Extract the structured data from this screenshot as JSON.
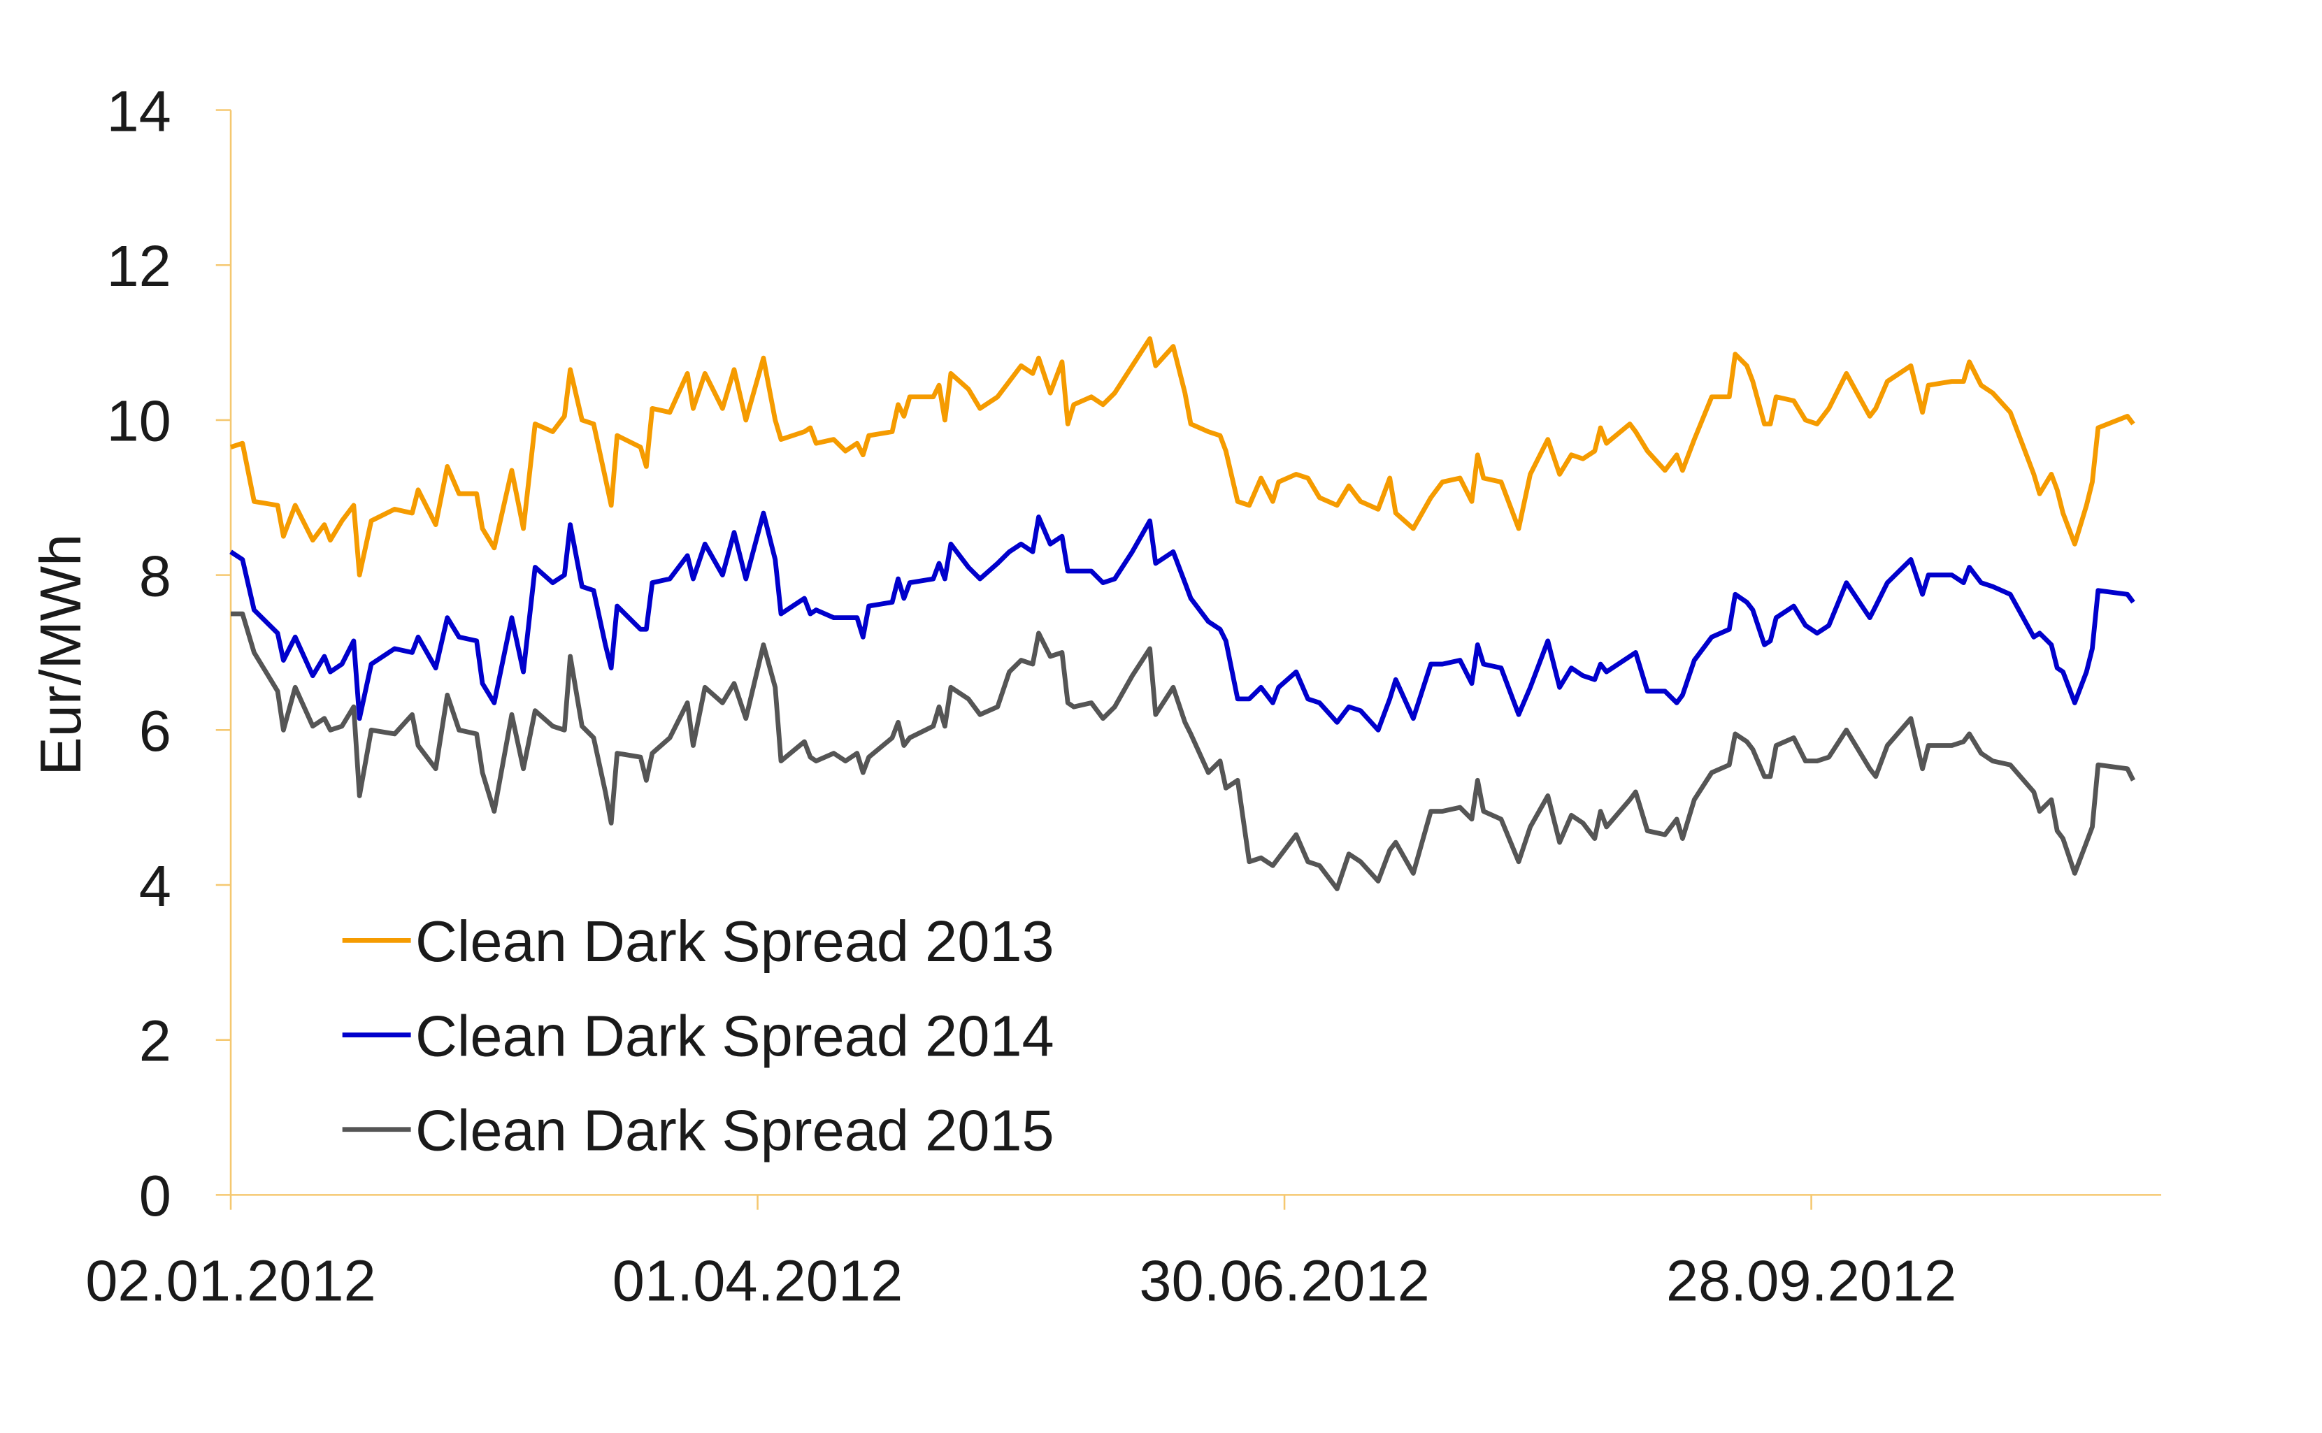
{
  "chart_data": {
    "type": "line",
    "title": "",
    "xlabel": "",
    "ylabel": "Eur/MWh",
    "ylim": [
      0,
      14
    ],
    "yticks": [
      "0",
      "2",
      "4",
      "6",
      "8",
      "10",
      "12",
      "14"
    ],
    "x_start_date": "02.01.2012",
    "xlim_days": [
      0,
      330
    ],
    "xticks": [
      {
        "day": 0,
        "label": "02.01.2012"
      },
      {
        "day": 90,
        "label": "01.04.2012"
      },
      {
        "day": 180,
        "label": "30.06.2012"
      },
      {
        "day": 270,
        "label": "28.09.2012"
      }
    ],
    "grid": false,
    "legend_position": "bottom-left",
    "x_days": [
      0,
      2,
      4,
      8,
      9,
      11,
      14,
      16,
      17,
      19,
      21,
      22,
      24,
      28,
      31,
      32,
      35,
      37,
      39,
      42,
      43,
      45,
      48,
      50,
      52,
      55,
      57,
      58,
      60,
      62,
      64,
      65,
      66,
      70,
      71,
      72,
      75,
      78,
      79,
      81,
      84,
      86,
      88,
      91,
      93,
      94,
      98,
      99,
      100,
      103,
      105,
      107,
      108,
      109,
      113,
      114,
      115,
      116,
      120,
      121,
      122,
      123,
      126,
      128,
      131,
      133,
      135,
      137,
      138,
      140,
      142,
      143,
      144,
      147,
      149,
      151,
      154,
      157,
      158,
      161,
      163,
      164,
      167,
      169,
      170,
      172,
      174,
      176,
      178,
      179,
      182,
      184,
      186,
      189,
      191,
      193,
      196,
      198,
      199,
      202,
      205,
      207,
      210,
      212,
      213,
      214,
      217,
      220,
      222,
      225,
      227,
      229,
      231,
      233,
      234,
      235,
      239,
      240,
      242,
      245,
      247,
      248,
      250,
      253,
      256,
      257,
      259,
      260,
      262,
      263,
      264,
      267,
      269,
      271,
      273,
      276,
      280,
      281,
      283,
      287,
      289,
      290,
      294,
      296,
      297,
      299,
      301,
      304,
      308,
      309,
      311,
      312,
      313,
      315,
      317,
      318,
      319,
      324,
      325
    ],
    "series": [
      {
        "name": "Clean Dark Spread 2013",
        "color": "#F59B00",
        "values": [
          9.65,
          9.7,
          8.95,
          8.9,
          8.5,
          8.9,
          8.45,
          8.65,
          8.45,
          8.7,
          8.9,
          8.0,
          8.7,
          8.85,
          8.8,
          9.1,
          8.65,
          9.4,
          9.05,
          9.05,
          8.6,
          8.35,
          9.35,
          8.6,
          9.95,
          9.85,
          10.05,
          10.65,
          10.0,
          9.95,
          9.25,
          8.9,
          9.8,
          9.65,
          9.4,
          10.15,
          10.1,
          10.6,
          10.15,
          10.6,
          10.15,
          10.65,
          10.0,
          10.8,
          10.0,
          9.75,
          9.85,
          9.9,
          9.7,
          9.75,
          9.6,
          9.7,
          9.55,
          9.8,
          9.85,
          10.2,
          10.05,
          10.3,
          10.3,
          10.45,
          10.0,
          10.6,
          10.4,
          10.15,
          10.3,
          10.5,
          10.7,
          10.6,
          10.8,
          10.35,
          10.75,
          9.95,
          10.2,
          10.3,
          10.2,
          10.35,
          10.7,
          11.05,
          10.7,
          10.95,
          10.35,
          9.95,
          9.85,
          9.8,
          9.6,
          8.95,
          8.9,
          9.25,
          8.95,
          9.2,
          9.3,
          9.25,
          9.0,
          8.9,
          9.15,
          8.95,
          8.85,
          9.25,
          8.8,
          8.6,
          9.0,
          9.2,
          9.25,
          8.95,
          9.55,
          9.25,
          9.2,
          8.6,
          9.3,
          9.75,
          9.3,
          9.55,
          9.5,
          9.6,
          9.9,
          9.7,
          9.95,
          9.85,
          9.6,
          9.35,
          9.55,
          9.35,
          9.75,
          10.3,
          10.3,
          10.85,
          10.7,
          10.5,
          9.95,
          9.95,
          10.3,
          10.25,
          10.0,
          9.95,
          10.15,
          10.6,
          10.05,
          10.15,
          10.5,
          10.7,
          10.1,
          10.45,
          10.5,
          10.5,
          10.75,
          10.45,
          10.35,
          10.1,
          9.3,
          9.05,
          9.3,
          9.1,
          8.8,
          8.4,
          8.9,
          9.2,
          9.9,
          10.05,
          9.95
        ]
      },
      {
        "name": "Clean Dark Spread 2014",
        "color": "#0000CC",
        "values": [
          8.3,
          8.2,
          7.55,
          7.25,
          6.9,
          7.2,
          6.7,
          6.95,
          6.75,
          6.85,
          7.15,
          6.15,
          6.85,
          7.05,
          7.0,
          7.2,
          6.8,
          7.45,
          7.2,
          7.15,
          6.6,
          6.35,
          7.45,
          6.75,
          8.1,
          7.9,
          8.0,
          8.65,
          7.85,
          7.8,
          7.1,
          6.8,
          7.6,
          7.3,
          7.3,
          7.9,
          7.95,
          8.25,
          7.95,
          8.4,
          8.0,
          8.55,
          7.95,
          8.8,
          8.2,
          7.5,
          7.7,
          7.5,
          7.55,
          7.45,
          7.45,
          7.45,
          7.2,
          7.6,
          7.65,
          7.95,
          7.7,
          7.9,
          7.95,
          8.15,
          7.95,
          8.4,
          8.1,
          7.95,
          8.15,
          8.3,
          8.4,
          8.3,
          8.75,
          8.4,
          8.5,
          8.05,
          8.05,
          8.05,
          7.9,
          7.95,
          8.3,
          8.7,
          8.15,
          8.3,
          7.9,
          7.7,
          7.4,
          7.3,
          7.15,
          6.4,
          6.4,
          6.55,
          6.35,
          6.55,
          6.75,
          6.4,
          6.35,
          6.1,
          6.3,
          6.25,
          6.0,
          6.4,
          6.65,
          6.15,
          6.85,
          6.85,
          6.9,
          6.6,
          7.1,
          6.85,
          6.8,
          6.2,
          6.55,
          7.15,
          6.55,
          6.8,
          6.7,
          6.65,
          6.85,
          6.75,
          6.95,
          7.0,
          6.5,
          6.5,
          6.35,
          6.45,
          6.9,
          7.2,
          7.3,
          7.75,
          7.65,
          7.55,
          7.1,
          7.15,
          7.45,
          7.6,
          7.35,
          7.25,
          7.35,
          7.9,
          7.45,
          7.6,
          7.9,
          8.2,
          7.75,
          8.0,
          8.0,
          7.9,
          8.1,
          7.9,
          7.85,
          7.75,
          7.2,
          7.25,
          7.1,
          6.8,
          6.75,
          6.35,
          6.75,
          7.05,
          7.8,
          7.75,
          7.65
        ]
      },
      {
        "name": "Clean Dark Spread 2015",
        "color": "#555555",
        "values": [
          7.5,
          7.5,
          7.0,
          6.5,
          6.0,
          6.55,
          6.05,
          6.15,
          6.0,
          6.05,
          6.3,
          5.15,
          6.0,
          5.95,
          6.2,
          5.8,
          5.5,
          6.45,
          6.0,
          5.95,
          5.45,
          4.95,
          6.2,
          5.5,
          6.25,
          6.05,
          6.0,
          6.95,
          6.05,
          5.9,
          5.2,
          4.8,
          5.7,
          5.65,
          5.35,
          5.7,
          5.9,
          6.35,
          5.8,
          6.55,
          6.35,
          6.6,
          6.15,
          7.1,
          6.55,
          5.6,
          5.85,
          5.65,
          5.6,
          5.7,
          5.6,
          5.7,
          5.45,
          5.65,
          5.9,
          6.1,
          5.8,
          5.9,
          6.05,
          6.3,
          6.05,
          6.55,
          6.4,
          6.2,
          6.3,
          6.75,
          6.9,
          6.85,
          7.25,
          6.95,
          7.0,
          6.35,
          6.3,
          6.35,
          6.15,
          6.3,
          6.7,
          7.05,
          6.2,
          6.55,
          6.1,
          5.95,
          5.45,
          5.6,
          5.25,
          5.35,
          4.3,
          4.35,
          4.25,
          4.35,
          4.65,
          4.3,
          4.25,
          3.95,
          4.4,
          4.3,
          4.05,
          4.45,
          4.55,
          4.15,
          4.95,
          4.95,
          5.0,
          4.85,
          5.35,
          4.95,
          4.85,
          4.3,
          4.75,
          5.15,
          4.55,
          4.9,
          4.8,
          4.6,
          4.95,
          4.75,
          5.1,
          5.2,
          4.7,
          4.65,
          4.85,
          4.6,
          5.1,
          5.45,
          5.55,
          5.95,
          5.85,
          5.75,
          5.4,
          5.4,
          5.8,
          5.9,
          5.6,
          5.6,
          5.65,
          6.0,
          5.5,
          5.4,
          5.8,
          6.15,
          5.5,
          5.8,
          5.8,
          5.85,
          5.95,
          5.7,
          5.6,
          5.55,
          5.2,
          4.95,
          5.1,
          4.7,
          4.6,
          4.15,
          4.55,
          4.75,
          5.55,
          5.5,
          5.35
        ]
      }
    ],
    "axis_color": "#F5C870"
  }
}
